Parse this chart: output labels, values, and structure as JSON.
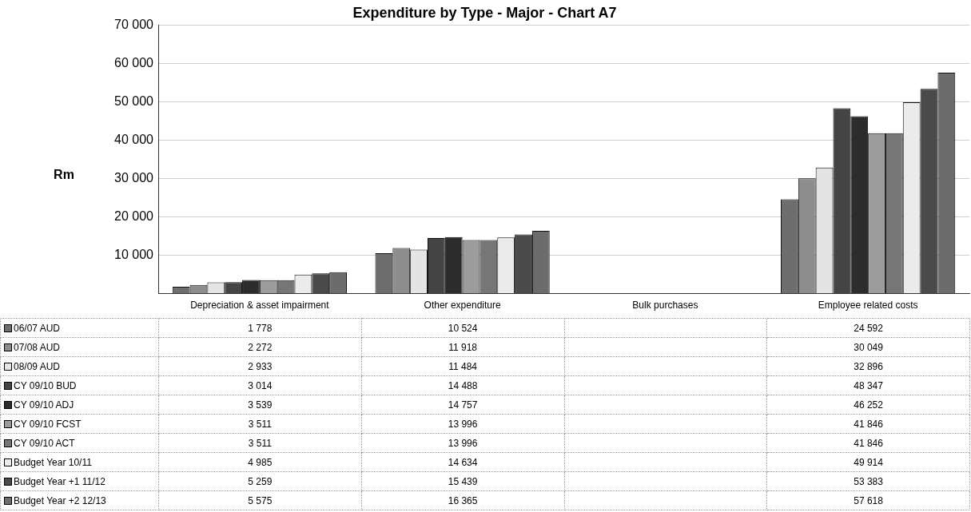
{
  "chart_data": {
    "type": "bar",
    "title": "Expenditure by Type - Major - Chart A7",
    "ylabel": "Rm",
    "categories": [
      "Depreciation & asset impairment",
      "Other expenditure",
      "Bulk purchases",
      "Employee related costs"
    ],
    "ylim": [
      0,
      70000
    ],
    "yticks": [
      {
        "value": 0,
        "label": null
      },
      {
        "value": 10000,
        "label": "10 000"
      },
      {
        "value": 20000,
        "label": "20 000"
      },
      {
        "value": 30000,
        "label": "30 000"
      },
      {
        "value": 40000,
        "label": "40 000"
      },
      {
        "value": 50000,
        "label": "50 000"
      },
      {
        "value": 60000,
        "label": "60 000"
      },
      {
        "value": 70000,
        "label": "70 000"
      }
    ],
    "grid": "y",
    "legend": "bottom left",
    "series": [
      {
        "name": "06/07 AUD",
        "color": "#6e6e6e",
        "values": [
          1778,
          10524,
          null,
          24592
        ],
        "value_labels": [
          "1 778",
          "10 524",
          null,
          "24 592"
        ]
      },
      {
        "name": "07/08 AUD",
        "color": "#8e8e8e",
        "values": [
          2272,
          11918,
          null,
          30049
        ],
        "value_labels": [
          "2 272",
          "11 918",
          null,
          "30 049"
        ]
      },
      {
        "name": "08/09 AUD",
        "color": "#e4e4e4",
        "values": [
          2933,
          11484,
          null,
          32896
        ],
        "value_labels": [
          "2 933",
          "11 484",
          null,
          "32 896"
        ]
      },
      {
        "name": "CY 09/10 BUD",
        "color": "#444444",
        "values": [
          3014,
          14488,
          null,
          48347
        ],
        "value_labels": [
          "3 014",
          "14 488",
          null,
          "48 347"
        ]
      },
      {
        "name": "CY  09/10 ADJ",
        "color": "#2c2c2c",
        "values": [
          3539,
          14757,
          null,
          46252
        ],
        "value_labels": [
          "3 539",
          "14 757",
          null,
          "46 252"
        ]
      },
      {
        "name": "CY 09/10 FCST",
        "color": "#9c9c9c",
        "values": [
          3511,
          13996,
          null,
          41846
        ],
        "value_labels": [
          "3 511",
          "13 996",
          null,
          "41 846"
        ]
      },
      {
        "name": "CY 09/10 ACT",
        "color": "#767676",
        "values": [
          3511,
          13996,
          null,
          41846
        ],
        "value_labels": [
          "3 511",
          "13 996",
          null,
          "41 846"
        ]
      },
      {
        "name": "Budget Year 10/11",
        "color": "#ebebeb",
        "values": [
          4985,
          14634,
          null,
          49914
        ],
        "value_labels": [
          "4 985",
          "14 634",
          null,
          "49 914"
        ]
      },
      {
        "name": "Budget Year +1 11/12",
        "color": "#4a4a4a",
        "values": [
          5259,
          15439,
          null,
          53383
        ],
        "value_labels": [
          "5 259",
          "15 439",
          null,
          "53 383"
        ]
      },
      {
        "name": "Budget Year +2 12/13",
        "color": "#6c6c6c",
        "values": [
          5575,
          16365,
          null,
          57618
        ],
        "value_labels": [
          "5 575",
          "16 365",
          null,
          "57 618"
        ]
      }
    ]
  }
}
